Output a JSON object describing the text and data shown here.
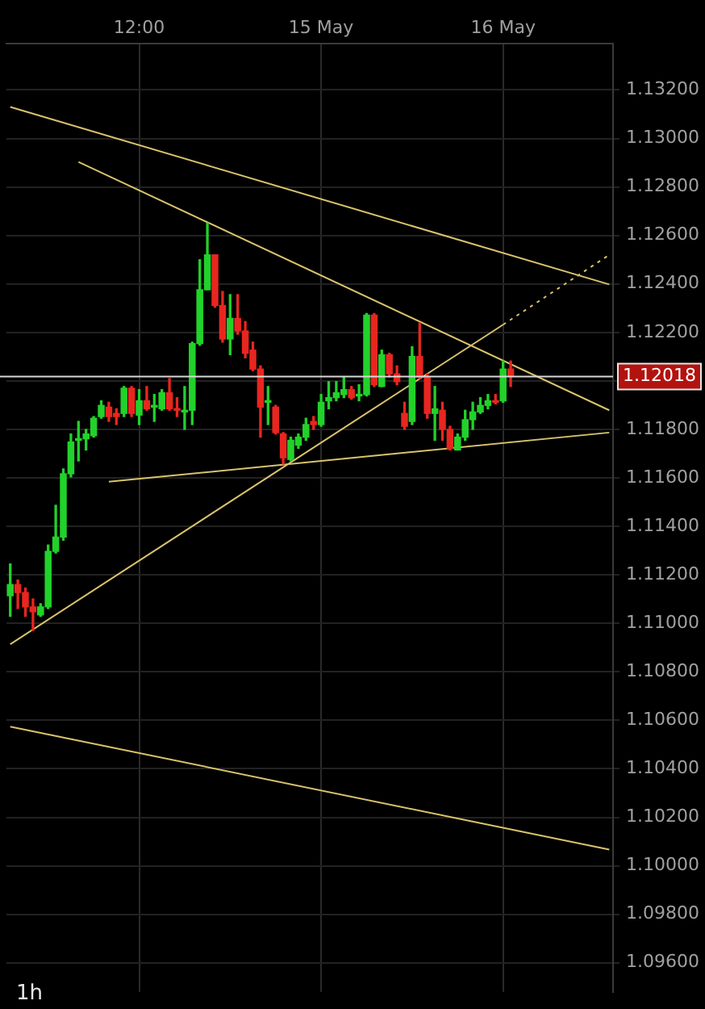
{
  "chart_data": {
    "type": "candlestick",
    "categories": [
      null,
      null,
      null,
      null,
      null,
      null,
      null,
      null,
      null,
      null,
      null,
      null,
      null,
      null,
      null,
      null,
      null,
      "12:00",
      null,
      null,
      null,
      null,
      null,
      null,
      null,
      null,
      null,
      null,
      null,
      null,
      null,
      null,
      null,
      null,
      null,
      null,
      null,
      null,
      null,
      null,
      null,
      "15 May",
      null,
      null,
      null,
      null,
      null,
      null,
      null,
      null,
      null,
      null,
      null,
      null,
      null,
      null,
      null,
      null,
      null,
      null,
      null,
      null,
      null,
      null,
      null,
      "16 May",
      null,
      null,
      null,
      null,
      null,
      null,
      null,
      null,
      null,
      null,
      null,
      null,
      null,
      null
    ],
    "ohlc": [
      [
        1.11114,
        1.11245,
        1.11029,
        1.1116
      ],
      [
        1.1116,
        1.11179,
        1.11061,
        1.11127
      ],
      [
        1.11127,
        1.11146,
        1.11029,
        1.11068
      ],
      [
        1.11068,
        1.11101,
        1.1097,
        1.11048
      ],
      [
        1.11035,
        1.11081,
        1.11029,
        1.11068
      ],
      [
        1.11068,
        1.11323,
        1.11061,
        1.11297
      ],
      [
        1.11297,
        1.11487,
        1.1129,
        1.11356
      ],
      [
        1.11356,
        1.11637,
        1.11343,
        1.11617
      ],
      [
        1.11617,
        1.11781,
        1.11604,
        1.11748
      ],
      [
        1.11755,
        1.11833,
        1.1167,
        1.11761
      ],
      [
        1.11761,
        1.118,
        1.11715,
        1.11781
      ],
      [
        1.11774,
        1.11853,
        1.11768,
        1.11846
      ],
      [
        1.11853,
        1.11918,
        1.11846,
        1.11899
      ],
      [
        1.11892,
        1.11912,
        1.11833,
        1.11853
      ],
      [
        1.11866,
        1.11885,
        1.1182,
        1.11853
      ],
      [
        1.11866,
        1.11977,
        1.11853,
        1.1197
      ],
      [
        1.1197,
        1.11977,
        1.11853,
        1.11866
      ],
      [
        1.11859,
        1.11964,
        1.1182,
        1.11918
      ],
      [
        1.11918,
        1.11977,
        1.11879,
        1.11885
      ],
      [
        1.11892,
        1.11944,
        1.11833,
        1.11899
      ],
      [
        1.11885,
        1.11964,
        1.11879,
        1.11951
      ],
      [
        1.11951,
        1.1201,
        1.11879,
        1.11885
      ],
      [
        1.11885,
        1.11931,
        1.11853,
        1.11879
      ],
      [
        1.11872,
        1.11977,
        1.118,
        1.11879
      ],
      [
        1.11879,
        1.1216,
        1.1182,
        1.12154
      ],
      [
        1.12154,
        1.125,
        1.12147,
        1.12376
      ],
      [
        1.12376,
        1.12651,
        1.12376,
        1.1252
      ],
      [
        1.1252,
        1.1252,
        1.12304,
        1.12311
      ],
      [
        1.12311,
        1.12369,
        1.1216,
        1.12173
      ],
      [
        1.12173,
        1.12356,
        1.12108,
        1.12258
      ],
      [
        1.12258,
        1.12356,
        1.12193,
        1.12206
      ],
      [
        1.12206,
        1.12245,
        1.12095,
        1.12114
      ],
      [
        1.12127,
        1.1216,
        1.12042,
        1.12049
      ],
      [
        1.12049,
        1.12062,
        1.11768,
        1.11892
      ],
      [
        1.11912,
        1.11977,
        1.1182,
        1.11918
      ],
      [
        1.11892,
        1.11899,
        1.11781,
        1.11787
      ],
      [
        1.11781,
        1.11787,
        1.11657,
        1.11683
      ],
      [
        1.11676,
        1.11768,
        1.1167,
        1.11755
      ],
      [
        1.11735,
        1.11781,
        1.11722,
        1.11768
      ],
      [
        1.11768,
        1.11846,
        1.11755,
        1.1182
      ],
      [
        1.11833,
        1.11853,
        1.118,
        1.1182
      ],
      [
        1.1182,
        1.11944,
        1.11813,
        1.11912
      ],
      [
        1.11918,
        1.11997,
        1.11885,
        1.11931
      ],
      [
        1.11931,
        1.11997,
        1.11918,
        1.11951
      ],
      [
        1.11944,
        1.12016,
        1.11931,
        1.11964
      ],
      [
        1.11964,
        1.11977,
        1.11925,
        1.11931
      ],
      [
        1.11938,
        1.11984,
        1.11918,
        1.11944
      ],
      [
        1.11944,
        1.12278,
        1.11938,
        1.12271
      ],
      [
        1.12271,
        1.12278,
        1.11977,
        1.11984
      ],
      [
        1.11977,
        1.12127,
        1.11977,
        1.12108
      ],
      [
        1.12108,
        1.12114,
        1.12016,
        1.12029
      ],
      [
        1.12029,
        1.12062,
        1.11984,
        1.11997
      ],
      [
        1.11866,
        1.11912,
        1.118,
        1.11813
      ],
      [
        1.11833,
        1.12141,
        1.1182,
        1.12101
      ],
      [
        1.12101,
        1.12239,
        1.1201,
        1.12016
      ],
      [
        1.12016,
        1.12029,
        1.11846,
        1.11866
      ],
      [
        1.11866,
        1.11977,
        1.11755,
        1.11885
      ],
      [
        1.11879,
        1.11912,
        1.11755,
        1.118
      ],
      [
        1.118,
        1.11813,
        1.11715,
        1.11722
      ],
      [
        1.11715,
        1.11781,
        1.11715,
        1.11768
      ],
      [
        1.11768,
        1.11879,
        1.11755,
        1.1184
      ],
      [
        1.1184,
        1.11912,
        1.118,
        1.11872
      ],
      [
        1.11872,
        1.11931,
        1.11866,
        1.11899
      ],
      [
        1.11899,
        1.11944,
        1.11885,
        1.11918
      ],
      [
        1.11918,
        1.11944,
        1.11905,
        1.11912
      ],
      [
        1.11918,
        1.12082,
        1.11912,
        1.12049
      ],
      [
        1.12049,
        1.12082,
        1.11977,
        1.12018
      ],
      null,
      null,
      null,
      null,
      null,
      null,
      null,
      null,
      null,
      null,
      null,
      null,
      null
    ],
    "colors": [
      "#22d12a",
      "#e8261f",
      "#e8261f",
      "#e8261f",
      "#22d12a",
      "#22d12a",
      "#22d12a",
      "#22d12a",
      "#22d12a",
      "#22d12a",
      "#22d12a",
      "#22d12a",
      "#22d12a",
      "#e8261f",
      "#e8261f",
      "#22d12a",
      "#e8261f",
      "#22d12a",
      "#e8261f",
      "#22d12a",
      "#22d12a",
      "#e8261f",
      "#e8261f",
      "#22d12a",
      "#22d12a",
      "#22d12a",
      "#22d12a",
      "#e8261f",
      "#e8261f",
      "#22d12a",
      "#e8261f",
      "#e8261f",
      "#e8261f",
      "#e8261f",
      "#22d12a",
      "#e8261f",
      "#e8261f",
      "#22d12a",
      "#22d12a",
      "#22d12a",
      "#e8261f",
      "#22d12a",
      "#22d12a",
      "#22d12a",
      "#22d12a",
      "#e8261f",
      "#22d12a",
      "#22d12a",
      "#e8261f",
      "#22d12a",
      "#e8261f",
      "#e8261f",
      "#e8261f",
      "#22d12a",
      "#e8261f",
      "#e8261f",
      "#22d12a",
      "#e8261f",
      "#e8261f",
      "#22d12a",
      "#22d12a",
      "#22d12a",
      "#22d12a",
      "#22d12a",
      "#e8261f",
      "#22d12a",
      "#e8261f",
      null,
      null,
      null,
      null,
      null,
      null,
      null,
      null,
      null,
      null,
      null,
      null,
      null
    ],
    "series": [
      {
        "type": "line",
        "color": "#d9c36c",
        "values": [
          1.1313,
          null,
          null,
          null,
          null,
          null,
          null,
          null,
          null,
          null,
          null,
          null,
          null,
          null,
          null,
          null,
          null,
          null,
          null,
          null,
          null,
          null,
          null,
          null,
          null,
          null,
          null,
          null,
          null,
          null,
          null,
          null,
          null,
          null,
          null,
          null,
          null,
          null,
          null,
          null,
          null,
          null,
          null,
          null,
          null,
          null,
          null,
          null,
          null,
          null,
          null,
          null,
          null,
          null,
          null,
          null,
          null,
          null,
          null,
          null,
          null,
          null,
          null,
          null,
          null,
          null,
          null,
          null,
          null,
          null,
          null,
          null,
          null,
          null,
          null,
          null,
          null,
          null,
          null,
          1.12398
        ]
      },
      {
        "type": "line",
        "color": "#d9c36c",
        "values": [
          null,
          null,
          null,
          null,
          null,
          null,
          null,
          null,
          null,
          1.12903,
          null,
          null,
          null,
          null,
          null,
          null,
          null,
          null,
          null,
          null,
          null,
          null,
          null,
          null,
          null,
          null,
          null,
          null,
          null,
          null,
          null,
          null,
          null,
          null,
          null,
          null,
          null,
          null,
          null,
          null,
          null,
          null,
          null,
          null,
          null,
          null,
          null,
          null,
          null,
          null,
          null,
          null,
          null,
          null,
          null,
          null,
          null,
          null,
          null,
          null,
          null,
          null,
          null,
          null,
          null,
          null,
          null,
          null,
          null,
          null,
          null,
          null,
          null,
          null,
          null,
          null,
          null,
          null,
          null,
          1.11879
        ]
      },
      {
        "type": "line",
        "color": "#d9c36c",
        "values": [
          1.10914,
          null,
          null,
          null,
          null,
          null,
          null,
          null,
          null,
          null,
          null,
          null,
          null,
          null,
          null,
          null,
          null,
          null,
          null,
          null,
          null,
          null,
          null,
          null,
          null,
          null,
          null,
          null,
          null,
          null,
          null,
          null,
          null,
          null,
          null,
          null,
          null,
          null,
          null,
          null,
          null,
          null,
          null,
          null,
          null,
          null,
          null,
          null,
          null,
          null,
          null,
          null,
          null,
          null,
          null,
          null,
          null,
          null,
          null,
          null,
          null,
          null,
          null,
          null,
          null,
          1.12232,
          null,
          null,
          null,
          null,
          null,
          null,
          null,
          null,
          null,
          null,
          null,
          null,
          null,
          null
        ]
      },
      {
        "type": "line",
        "color": "#d9c36c",
        "line_style": "dotted",
        "values": [
          null,
          null,
          null,
          null,
          null,
          null,
          null,
          null,
          null,
          null,
          null,
          null,
          null,
          null,
          null,
          null,
          null,
          null,
          null,
          null,
          null,
          null,
          null,
          null,
          null,
          null,
          null,
          null,
          null,
          null,
          null,
          null,
          null,
          null,
          null,
          null,
          null,
          null,
          null,
          null,
          null,
          null,
          null,
          null,
          null,
          null,
          null,
          null,
          null,
          null,
          null,
          null,
          null,
          null,
          null,
          null,
          null,
          null,
          null,
          null,
          null,
          null,
          null,
          null,
          null,
          1.12232,
          null,
          null,
          null,
          null,
          null,
          null,
          null,
          null,
          null,
          null,
          null,
          null,
          null,
          1.1252
        ]
      },
      {
        "type": "line",
        "color": "#d9c36c",
        "values": [
          null,
          null,
          null,
          null,
          null,
          null,
          null,
          null,
          null,
          null,
          null,
          null,
          null,
          1.11584,
          null,
          null,
          null,
          null,
          null,
          null,
          null,
          null,
          null,
          null,
          null,
          null,
          null,
          null,
          null,
          null,
          null,
          null,
          null,
          null,
          null,
          null,
          null,
          null,
          null,
          null,
          null,
          null,
          null,
          null,
          null,
          null,
          null,
          null,
          null,
          null,
          null,
          null,
          null,
          null,
          null,
          null,
          null,
          null,
          null,
          null,
          null,
          null,
          null,
          null,
          null,
          null,
          null,
          null,
          null,
          null,
          null,
          null,
          null,
          null,
          null,
          null,
          null,
          null,
          null,
          1.11787
        ]
      },
      {
        "type": "line",
        "color": "#d9c36c",
        "values": [
          1.10574,
          null,
          null,
          null,
          null,
          null,
          null,
          null,
          null,
          null,
          null,
          null,
          null,
          null,
          null,
          null,
          null,
          null,
          null,
          null,
          null,
          null,
          null,
          null,
          null,
          null,
          null,
          null,
          null,
          null,
          null,
          null,
          null,
          null,
          null,
          null,
          null,
          null,
          null,
          null,
          null,
          null,
          null,
          null,
          null,
          null,
          null,
          null,
          null,
          null,
          null,
          null,
          null,
          null,
          null,
          null,
          null,
          null,
          null,
          null,
          null,
          null,
          null,
          null,
          null,
          null,
          null,
          null,
          null,
          null,
          null,
          null,
          null,
          null,
          null,
          null,
          null,
          null,
          null,
          1.10067
        ]
      }
    ],
    "ref_lines": [
      {
        "axis": "y",
        "value": 1.12018,
        "label": "1.12018",
        "color": "#d8d8d8"
      }
    ],
    "annotations": [
      "1h"
    ],
    "ylim": [
      1.0948,
      1.1339
    ],
    "yticks": [
      {
        "value": 1.096,
        "label": "1.09600"
      },
      {
        "value": 1.098,
        "label": "1.09800"
      },
      {
        "value": 1.1,
        "label": "1.10000"
      },
      {
        "value": 1.102,
        "label": "1.10200"
      },
      {
        "value": 1.104,
        "label": "1.10400"
      },
      {
        "value": 1.106,
        "label": "1.10600"
      },
      {
        "value": 1.108,
        "label": "1.10800"
      },
      {
        "value": 1.11,
        "label": "1.11000"
      },
      {
        "value": 1.112,
        "label": "1.11200"
      },
      {
        "value": 1.114,
        "label": "1.11400"
      },
      {
        "value": 1.116,
        "label": "1.11600"
      },
      {
        "value": 1.118,
        "label": "1.11800"
      },
      {
        "value": 1.12,
        "label": null
      },
      {
        "value": 1.122,
        "label": "1.12200"
      },
      {
        "value": 1.124,
        "label": "1.12400"
      },
      {
        "value": 1.126,
        "label": "1.12600"
      },
      {
        "value": 1.128,
        "label": "1.12800"
      },
      {
        "value": 1.13,
        "label": "1.13000"
      },
      {
        "value": 1.132,
        "label": "1.13200"
      }
    ],
    "grid": true
  }
}
